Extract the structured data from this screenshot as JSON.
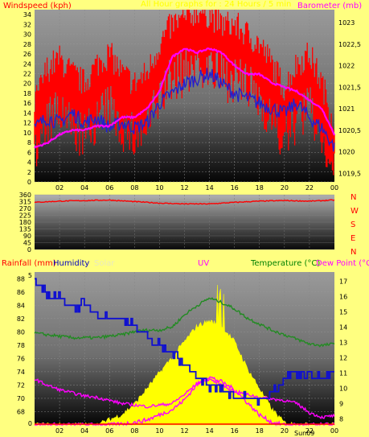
{
  "colors": {
    "background": "#ffff80",
    "windspeed": "#ff0000",
    "wind_avg": "#2020d0",
    "barometer": "#ff00ff",
    "direction": "#ff0000",
    "temperature": "#228b22",
    "dew_point": "#ff00ff",
    "humidity": "#1010d0",
    "solar": "#ffff00",
    "uv": "#ff00ff",
    "rainfall": "#ff0000"
  },
  "panel1": {
    "left_label": "Windspeed (kph)",
    "center_label": "All Hour graphs for : 24 Hours / 5 min",
    "right_label": "Barometer (mb)"
  },
  "panel2": {
    "direction_letters": [
      "N",
      "W",
      "S",
      "E",
      "N"
    ]
  },
  "panel3": {
    "rain_label": "Rainfall (mm)",
    "humidity_label": "Humidity",
    "solar_label": "Solar",
    "uv_label": "UV",
    "temp_label": "Temperature (°C)",
    "dew_label": "Dew Point (°C)",
    "sunrise_marker": "Sun09"
  },
  "chart_data": [
    {
      "type": "line",
      "x_label_ticks": [
        "02",
        "04",
        "06",
        "08",
        "10",
        "12",
        "14",
        "16",
        "18",
        "20",
        "22",
        "00"
      ],
      "y_ticks_left": [
        0,
        2,
        4,
        6,
        8,
        10,
        12,
        14,
        16,
        18,
        20,
        22,
        24,
        26,
        28,
        30,
        32,
        34
      ],
      "y_ticks_right": [
        "1019,5",
        "1020",
        "1020,5",
        "1021",
        "1021,5",
        "1022",
        "1022,5",
        "1023"
      ],
      "ylim_left": [
        0,
        35
      ],
      "ylim_right": [
        1019.3,
        1023.3
      ],
      "x": [
        0,
        1,
        2,
        3,
        4,
        5,
        6,
        7,
        8,
        9,
        10,
        11,
        12,
        13,
        14,
        15,
        16,
        17,
        18,
        19,
        20,
        21,
        22,
        23,
        24
      ],
      "series": [
        {
          "axis": "left",
          "role": "gust",
          "values": [
            14,
            21,
            23,
            20,
            18,
            22,
            24,
            20,
            18,
            20,
            26,
            30,
            31,
            33,
            32,
            30,
            30,
            28,
            26,
            22,
            17,
            22,
            24,
            18,
            10
          ]
        },
        {
          "axis": "left",
          "role": "average",
          "values": [
            11,
            13,
            12,
            14,
            12,
            13,
            11,
            12,
            11,
            12,
            16,
            18,
            20,
            21,
            22,
            20,
            18,
            17,
            16,
            15,
            14,
            16,
            13,
            11,
            7
          ]
        },
        {
          "axis": "right",
          "role": "pressure",
          "values": [
            1020.1,
            1020.2,
            1020.4,
            1020.5,
            1020.5,
            1020.6,
            1020.6,
            1020.8,
            1020.8,
            1021.0,
            1021.4,
            1022.2,
            1022.4,
            1022.3,
            1022.4,
            1022.3,
            1022.0,
            1021.8,
            1021.8,
            1021.6,
            1021.5,
            1021.4,
            1021.2,
            1021.0,
            1020.4
          ]
        }
      ]
    },
    {
      "type": "line",
      "y_ticks": [
        0,
        45,
        90,
        135,
        180,
        225,
        270,
        315,
        360
      ],
      "ylim": [
        0,
        360
      ],
      "x": [
        0,
        2,
        4,
        6,
        8,
        10,
        12,
        14,
        16,
        18,
        20,
        22,
        24
      ],
      "series": [
        {
          "role": "direction",
          "values": [
            310,
            318,
            322,
            325,
            315,
            305,
            300,
            300,
            310,
            318,
            322,
            318,
            325
          ]
        }
      ]
    },
    {
      "type": "line",
      "x_label_ticks": [
        "02",
        "04",
        "06",
        "08",
        "10",
        "12",
        "14",
        "16",
        "18",
        "20",
        "22",
        "00"
      ],
      "y_ticks_rain": [
        0,
        5
      ],
      "y_ticks_humidity": [
        68,
        70,
        72,
        74,
        76,
        78,
        80,
        82,
        84,
        86,
        88
      ],
      "y_ticks_temp": [
        8,
        9,
        10,
        11,
        12,
        13,
        14,
        15,
        16,
        17
      ],
      "ylim_humidity": [
        66,
        89
      ],
      "ylim_temp": [
        7.6,
        17.6
      ],
      "x": [
        0,
        1,
        2,
        3,
        4,
        5,
        6,
        7,
        8,
        9,
        10,
        11,
        12,
        13,
        14,
        15,
        16,
        17,
        18,
        19,
        20,
        21,
        22,
        23,
        24
      ],
      "series": [
        {
          "axis": "humidity",
          "role": "humidity",
          "values": [
            87,
            86,
            85,
            84,
            84,
            83,
            82,
            82,
            81,
            79,
            78,
            77,
            75,
            73,
            72,
            71,
            70,
            70,
            70,
            71,
            73,
            74,
            74,
            73,
            74
          ]
        },
        {
          "axis": "temp",
          "role": "temperature",
          "values": [
            13.6,
            13.5,
            13.4,
            13.3,
            13.3,
            13.3,
            13.4,
            13.5,
            13.7,
            13.8,
            13.8,
            14.0,
            14.8,
            15.4,
            15.9,
            15.6,
            15.2,
            14.6,
            14.2,
            13.8,
            13.5,
            13.2,
            12.9,
            12.8,
            12.9
          ]
        },
        {
          "axis": "temp",
          "role": "dew_point",
          "values": [
            10.6,
            10.2,
            9.9,
            9.7,
            9.5,
            9.4,
            9.2,
            9.0,
            8.9,
            8.8,
            8.9,
            9.0,
            9.6,
            10.3,
            10.6,
            10.2,
            9.8,
            9.6,
            9.4,
            9.3,
            9.2,
            9.0,
            8.4,
            8.1,
            8.2
          ]
        },
        {
          "axis": "uv_solar",
          "role": "solar",
          "values": [
            0,
            0,
            0,
            0,
            0,
            0,
            0.05,
            0.1,
            0.2,
            0.35,
            0.5,
            0.65,
            0.8,
            0.95,
            1.0,
            0.95,
            0.8,
            0.55,
            0.35,
            0.15,
            0.02,
            0,
            0,
            0,
            0
          ]
        },
        {
          "axis": "uv_solar",
          "role": "uv",
          "values": [
            0,
            0,
            0,
            0,
            0,
            0,
            0,
            0.02,
            0.05,
            0.1,
            0.2,
            0.3,
            0.5,
            0.8,
            0.95,
            0.85,
            0.7,
            0.45,
            0.2,
            0.05,
            0,
            0,
            0,
            0,
            0
          ]
        }
      ]
    }
  ]
}
